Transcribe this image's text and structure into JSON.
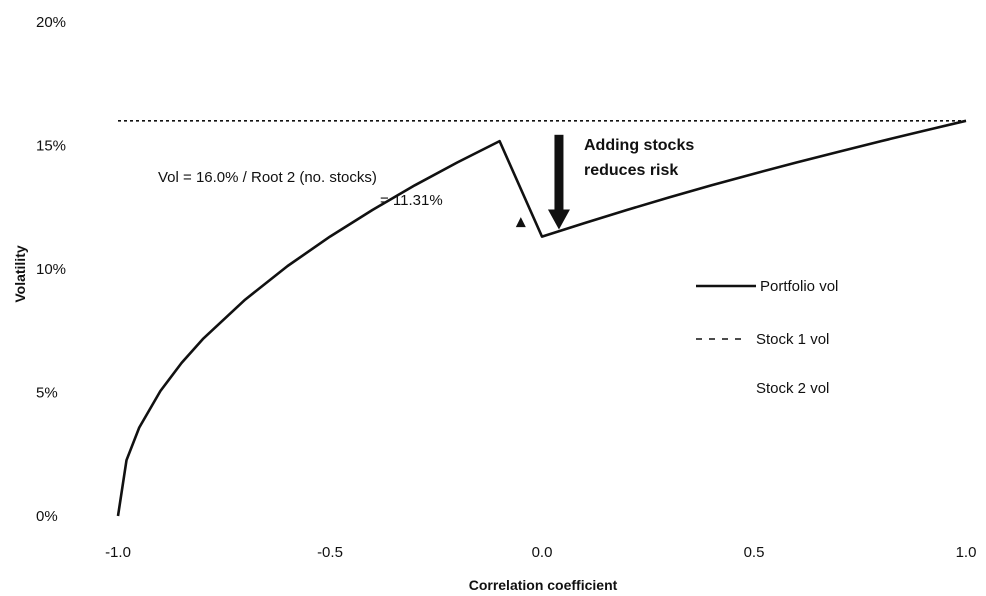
{
  "chart_data": {
    "type": "line",
    "xlabel": "Correlation coefficient",
    "ylabel": "Volatility",
    "xlim": [
      -1.0,
      1.0
    ],
    "ylim": [
      0,
      20
    ],
    "y_unit": "%",
    "x_ticks": [
      {
        "value": -1.0,
        "label": "-1.0"
      },
      {
        "value": -0.5,
        "label": "-0.5"
      },
      {
        "value": 0.0,
        "label": "0.0"
      },
      {
        "value": 0.5,
        "label": "0.5"
      },
      {
        "value": 1.0,
        "label": "1.0"
      }
    ],
    "y_ticks": [
      {
        "value": 0,
        "label": "0%"
      },
      {
        "value": 5,
        "label": "5%"
      },
      {
        "value": 10,
        "label": "10%"
      },
      {
        "value": 15,
        "label": "15%"
      },
      {
        "value": 20,
        "label": "20%"
      }
    ],
    "grid": false,
    "legend_position": "right",
    "series": [
      {
        "name": "Portfolio vol",
        "style": "solid",
        "color": "#111111",
        "x": [
          -1.0,
          -0.98,
          -0.95,
          -0.9,
          -0.85,
          -0.8,
          -0.7,
          -0.6,
          -0.5,
          -0.4,
          -0.3,
          -0.2,
          -0.1,
          0.0,
          0.1,
          0.2,
          0.3,
          0.4,
          0.5,
          0.6,
          0.7,
          0.8,
          0.9,
          1.0
        ],
        "y": [
          0.0,
          2.26,
          3.58,
          5.06,
          6.2,
          7.16,
          8.76,
          10.12,
          11.31,
          12.39,
          13.39,
          14.31,
          15.18,
          11.31,
          11.86,
          12.39,
          12.9,
          13.39,
          13.86,
          14.31,
          14.75,
          15.18,
          15.59,
          16.0
        ]
      },
      {
        "name": "Stock 1 vol",
        "style": "dashed",
        "color": "#111111",
        "x": [
          -1.0,
          1.0
        ],
        "y": [
          16.0,
          16.0
        ]
      },
      {
        "name": "Stock 2 vol",
        "style": "dashed",
        "color": "#111111",
        "x": [
          -1.0,
          1.0
        ],
        "y": [
          16.0,
          16.0
        ]
      }
    ],
    "annotations": [
      {
        "id": "root2",
        "lines": [
          "Vol = 16.0% / Root 2 (no. stocks)",
          "= 11.31%"
        ]
      },
      {
        "id": "risk",
        "lines": [
          "Adding stocks",
          "reduces risk"
        ]
      }
    ],
    "markers": [
      {
        "name": "triangle",
        "x": -0.05,
        "y": 11.9
      }
    ],
    "arrow": {
      "x": 0.04,
      "y_from": 16.0,
      "y_to": 11.6
    }
  }
}
